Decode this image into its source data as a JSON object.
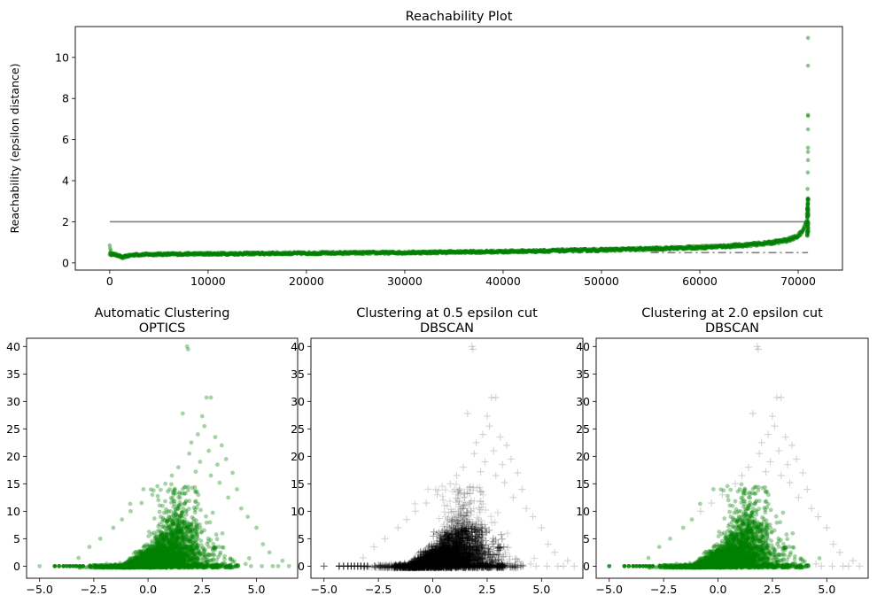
{
  "chart_data": [
    {
      "type": "scatter",
      "title": "Reachability Plot",
      "xlabel": "",
      "ylabel": "Reachability (epsilon distance)",
      "xlim": [
        -3500,
        74500
      ],
      "ylim": [
        -0.35,
        11.5
      ],
      "xticks": [
        0,
        10000,
        20000,
        30000,
        40000,
        50000,
        60000,
        70000
      ],
      "yticks": [
        0,
        2,
        4,
        6,
        8,
        10
      ],
      "grid": false,
      "point_color": "#008000",
      "reachability_curve": {
        "x": [
          0,
          300,
          800,
          1300,
          1700,
          2500,
          5000,
          10000,
          20000,
          30000,
          40000,
          50000,
          55000,
          60000,
          63000,
          65000,
          67000,
          68500,
          69500,
          70000,
          70300,
          70600,
          70800,
          70900,
          70950,
          71000
        ],
        "y": [
          0.45,
          0.42,
          0.38,
          0.25,
          0.33,
          0.4,
          0.42,
          0.44,
          0.47,
          0.5,
          0.55,
          0.63,
          0.68,
          0.76,
          0.82,
          0.88,
          0.97,
          1.07,
          1.2,
          1.32,
          1.45,
          1.68,
          2.0,
          2.4,
          2.8,
          3.2
        ]
      },
      "outliers": {
        "x": [
          0,
          50,
          100,
          70950,
          70980,
          71000,
          71000,
          71000,
          71000,
          71000,
          71000,
          71000,
          71000
        ],
        "y": [
          0.85,
          0.7,
          0.6,
          3.6,
          4.4,
          5.0,
          5.4,
          5.6,
          6.5,
          7.15,
          7.2,
          9.6,
          10.95
        ]
      },
      "cut_lines": [
        {
          "y": 2.0,
          "x": [
            0,
            71000
          ],
          "style": "solid",
          "color": "#808080"
        },
        {
          "y": 0.5,
          "x": [
            55000,
            71000
          ],
          "style": "dashdot",
          "color": "#808080"
        }
      ]
    },
    {
      "type": "scatter",
      "title": "Automatic Clustering\nOPTICS",
      "xlim": [
        -5.6,
        6.9
      ],
      "ylim": [
        -2.2,
        41.5
      ],
      "xticks": [
        -5.0,
        -2.5,
        0.0,
        2.5,
        5.0
      ],
      "yticks": [
        0,
        5,
        10,
        15,
        20,
        25,
        30,
        35,
        40
      ],
      "core_color": "#008000",
      "noise_color": null,
      "marker": "circle"
    },
    {
      "type": "scatter",
      "title": "Clustering at 0.5 epsilon cut\nDBSCAN",
      "xlim": [
        -5.6,
        6.9
      ],
      "ylim": [
        -2.2,
        41.5
      ],
      "xticks": [
        -5.0,
        -2.5,
        0.0,
        2.5,
        5.0
      ],
      "yticks": [
        0,
        5,
        10,
        15,
        20,
        25,
        30,
        35,
        40
      ],
      "core_color": "#000000",
      "noise_color": "#000000",
      "marker": "plus"
    },
    {
      "type": "scatter",
      "title": "Clustering at 2.0 epsilon cut\nDBSCAN",
      "xlim": [
        -5.6,
        6.9
      ],
      "ylim": [
        -2.2,
        41.5
      ],
      "xticks": [
        -5.0,
        -2.5,
        0.0,
        2.5,
        5.0
      ],
      "yticks": [
        0,
        5,
        10,
        15,
        20,
        25,
        30,
        35,
        40
      ],
      "core_color": "#008000",
      "noise_color": "#000000",
      "marker": "circle"
    }
  ],
  "scatter_points": {
    "outliers": [
      [
        -5.0,
        0
      ],
      [
        -4.3,
        0
      ],
      [
        -3.9,
        0
      ],
      [
        -3.6,
        0
      ],
      [
        -3.35,
        0
      ],
      [
        -3.15,
        0
      ],
      [
        -3.0,
        0
      ],
      [
        6.5,
        0
      ],
      [
        6.0,
        0
      ],
      [
        5.75,
        0
      ],
      [
        5.25,
        0
      ],
      [
        4.75,
        0
      ],
      [
        4.5,
        0.4
      ],
      [
        1.8,
        40.0
      ],
      [
        1.85,
        39.5
      ],
      [
        2.7,
        30.7
      ],
      [
        2.9,
        30.7
      ],
      [
        1.6,
        27.8
      ],
      [
        2.5,
        27.3
      ],
      [
        2.6,
        25.5
      ],
      [
        2.3,
        24.0
      ],
      [
        3.1,
        23.5
      ],
      [
        2.0,
        22.5
      ],
      [
        3.4,
        22.0
      ],
      [
        2.8,
        21.0
      ],
      [
        1.9,
        20.5
      ],
      [
        3.6,
        19.5
      ],
      [
        2.4,
        19.0
      ],
      [
        3.2,
        18.5
      ],
      [
        1.4,
        18.0
      ],
      [
        2.2,
        17.2
      ],
      [
        3.9,
        17.0
      ],
      [
        2.9,
        16.5
      ],
      [
        1.1,
        16.5
      ],
      [
        3.3,
        15.2
      ],
      [
        0.8,
        15.0
      ],
      [
        4.1,
        14.0
      ],
      [
        0.2,
        13.0
      ],
      [
        3.7,
        12.5
      ],
      [
        -0.3,
        11.5
      ],
      [
        4.3,
        10.5
      ],
      [
        -0.8,
        10.0
      ],
      [
        4.6,
        9.0
      ],
      [
        -1.2,
        8.5
      ],
      [
        5.0,
        7.0
      ],
      [
        -1.6,
        7.0
      ],
      [
        -2.2,
        5.0
      ],
      [
        5.3,
        4.0
      ],
      [
        -2.7,
        3.5
      ],
      [
        5.6,
        2.5
      ],
      [
        -3.2,
        1.5
      ],
      [
        6.2,
        1.0
      ]
    ]
  }
}
